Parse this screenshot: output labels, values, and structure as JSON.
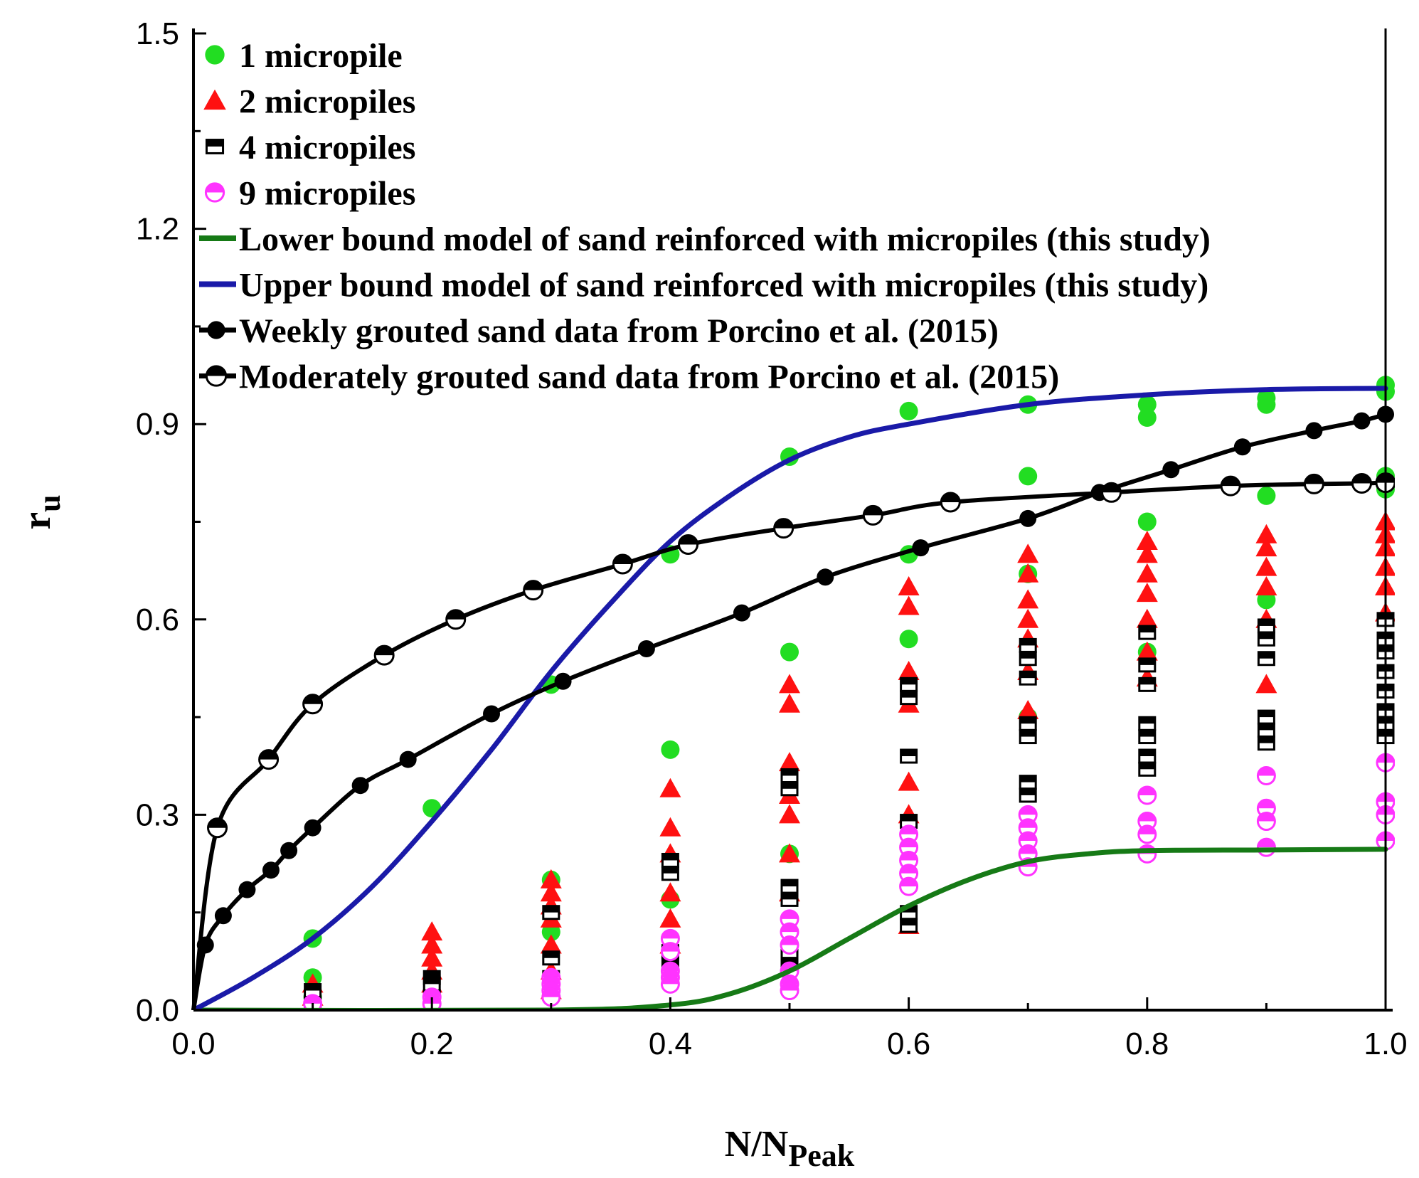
{
  "chart_data": {
    "type": "scatter",
    "title": "",
    "xlabel": {
      "main": "N/N",
      "sub": "Peak"
    },
    "ylabel": {
      "main": "r",
      "sub": "u"
    },
    "xlim": [
      0,
      1
    ],
    "ylim": [
      0,
      1.5
    ],
    "xticks": [
      "0.0",
      "0.2",
      "0.4",
      "0.6",
      "0.8",
      "1.0"
    ],
    "yticks": [
      "0.0",
      "0.3",
      "0.6",
      "0.9",
      "1.2",
      "1.5"
    ],
    "grid": false,
    "legend_position": "top-left",
    "colors": {
      "green_points": "#22dd22",
      "red_points": "#ff1111",
      "magenta_points": "#ff33ff",
      "lower_bound": "#167a16",
      "upper_bound": "#1a1aa8",
      "black": "#000000"
    },
    "series": [
      {
        "name": "1 micropile",
        "kind": "scatter",
        "marker": "circle",
        "points": [
          [
            0.1,
            0.11
          ],
          [
            0.1,
            0.05
          ],
          [
            0.1,
            0.02
          ],
          [
            0.2,
            0.31
          ],
          [
            0.2,
            0.01
          ],
          [
            0.3,
            0.5
          ],
          [
            0.3,
            0.2
          ],
          [
            0.3,
            0.12
          ],
          [
            0.4,
            0.7
          ],
          [
            0.4,
            0.4
          ],
          [
            0.4,
            0.17
          ],
          [
            0.5,
            0.85
          ],
          [
            0.5,
            0.55
          ],
          [
            0.5,
            0.24
          ],
          [
            0.6,
            0.92
          ],
          [
            0.6,
            0.7
          ],
          [
            0.6,
            0.57
          ],
          [
            0.7,
            0.93
          ],
          [
            0.7,
            0.82
          ],
          [
            0.7,
            0.67
          ],
          [
            0.7,
            0.45
          ],
          [
            0.8,
            0.93
          ],
          [
            0.8,
            0.91
          ],
          [
            0.8,
            0.75
          ],
          [
            0.8,
            0.55
          ],
          [
            0.9,
            0.94
          ],
          [
            0.9,
            0.93
          ],
          [
            0.9,
            0.79
          ],
          [
            0.9,
            0.63
          ],
          [
            1.0,
            0.96
          ],
          [
            1.0,
            0.95
          ],
          [
            1.0,
            0.82
          ],
          [
            1.0,
            0.8
          ]
        ]
      },
      {
        "name": "2 micropiles",
        "kind": "scatter",
        "marker": "triangle",
        "points": [
          [
            0.1,
            0.04
          ],
          [
            0.1,
            0.02
          ],
          [
            0.2,
            0.12
          ],
          [
            0.2,
            0.1
          ],
          [
            0.2,
            0.08
          ],
          [
            0.2,
            0.06
          ],
          [
            0.2,
            0.04
          ],
          [
            0.3,
            0.2
          ],
          [
            0.3,
            0.18
          ],
          [
            0.3,
            0.16
          ],
          [
            0.3,
            0.14
          ],
          [
            0.3,
            0.1
          ],
          [
            0.3,
            0.06
          ],
          [
            0.3,
            0.03
          ],
          [
            0.4,
            0.34
          ],
          [
            0.4,
            0.28
          ],
          [
            0.4,
            0.24
          ],
          [
            0.4,
            0.18
          ],
          [
            0.4,
            0.14
          ],
          [
            0.4,
            0.1
          ],
          [
            0.5,
            0.5
          ],
          [
            0.5,
            0.47
          ],
          [
            0.5,
            0.38
          ],
          [
            0.5,
            0.33
          ],
          [
            0.5,
            0.3
          ],
          [
            0.5,
            0.24
          ],
          [
            0.5,
            0.18
          ],
          [
            0.6,
            0.65
          ],
          [
            0.6,
            0.62
          ],
          [
            0.6,
            0.52
          ],
          [
            0.6,
            0.47
          ],
          [
            0.6,
            0.35
          ],
          [
            0.6,
            0.3
          ],
          [
            0.6,
            0.13
          ],
          [
            0.7,
            0.7
          ],
          [
            0.7,
            0.67
          ],
          [
            0.7,
            0.63
          ],
          [
            0.7,
            0.6
          ],
          [
            0.7,
            0.57
          ],
          [
            0.7,
            0.52
          ],
          [
            0.7,
            0.46
          ],
          [
            0.8,
            0.72
          ],
          [
            0.8,
            0.7
          ],
          [
            0.8,
            0.67
          ],
          [
            0.8,
            0.64
          ],
          [
            0.8,
            0.6
          ],
          [
            0.8,
            0.55
          ],
          [
            0.8,
            0.51
          ],
          [
            0.9,
            0.73
          ],
          [
            0.9,
            0.71
          ],
          [
            0.9,
            0.68
          ],
          [
            0.9,
            0.65
          ],
          [
            0.9,
            0.6
          ],
          [
            0.9,
            0.5
          ],
          [
            1.0,
            0.75
          ],
          [
            1.0,
            0.73
          ],
          [
            1.0,
            0.71
          ],
          [
            1.0,
            0.68
          ],
          [
            1.0,
            0.65
          ],
          [
            1.0,
            0.61
          ]
        ]
      },
      {
        "name": "4 micropiles",
        "kind": "scatter",
        "marker": "square-half",
        "points": [
          [
            0.1,
            0.03
          ],
          [
            0.1,
            0.01
          ],
          [
            0.2,
            0.05
          ],
          [
            0.2,
            0.04
          ],
          [
            0.2,
            0.02
          ],
          [
            0.3,
            0.15
          ],
          [
            0.3,
            0.08
          ],
          [
            0.3,
            0.05
          ],
          [
            0.3,
            0.03
          ],
          [
            0.4,
            0.23
          ],
          [
            0.4,
            0.21
          ],
          [
            0.4,
            0.09
          ],
          [
            0.4,
            0.07
          ],
          [
            0.5,
            0.36
          ],
          [
            0.5,
            0.34
          ],
          [
            0.5,
            0.19
          ],
          [
            0.5,
            0.17
          ],
          [
            0.5,
            0.09
          ],
          [
            0.5,
            0.07
          ],
          [
            0.6,
            0.5
          ],
          [
            0.6,
            0.48
          ],
          [
            0.6,
            0.39
          ],
          [
            0.6,
            0.29
          ],
          [
            0.6,
            0.15
          ],
          [
            0.6,
            0.13
          ],
          [
            0.7,
            0.56
          ],
          [
            0.7,
            0.54
          ],
          [
            0.7,
            0.51
          ],
          [
            0.7,
            0.44
          ],
          [
            0.7,
            0.42
          ],
          [
            0.7,
            0.35
          ],
          [
            0.7,
            0.33
          ],
          [
            0.8,
            0.58
          ],
          [
            0.8,
            0.53
          ],
          [
            0.8,
            0.5
          ],
          [
            0.8,
            0.44
          ],
          [
            0.8,
            0.42
          ],
          [
            0.8,
            0.39
          ],
          [
            0.8,
            0.37
          ],
          [
            0.9,
            0.59
          ],
          [
            0.9,
            0.57
          ],
          [
            0.9,
            0.54
          ],
          [
            0.9,
            0.45
          ],
          [
            0.9,
            0.43
          ],
          [
            0.9,
            0.41
          ],
          [
            1.0,
            0.6
          ],
          [
            1.0,
            0.57
          ],
          [
            1.0,
            0.55
          ],
          [
            1.0,
            0.52
          ],
          [
            1.0,
            0.49
          ],
          [
            1.0,
            0.46
          ],
          [
            1.0,
            0.44
          ],
          [
            1.0,
            0.42
          ]
        ]
      },
      {
        "name": "9 micropiles",
        "kind": "scatter",
        "marker": "circle-half",
        "points": [
          [
            0.1,
            0.01
          ],
          [
            0.2,
            0.02
          ],
          [
            0.2,
            0.01
          ],
          [
            0.3,
            0.05
          ],
          [
            0.3,
            0.04
          ],
          [
            0.3,
            0.03
          ],
          [
            0.3,
            0.02
          ],
          [
            0.4,
            0.11
          ],
          [
            0.4,
            0.09
          ],
          [
            0.4,
            0.06
          ],
          [
            0.4,
            0.05
          ],
          [
            0.4,
            0.04
          ],
          [
            0.5,
            0.14
          ],
          [
            0.5,
            0.12
          ],
          [
            0.5,
            0.1
          ],
          [
            0.5,
            0.06
          ],
          [
            0.5,
            0.04
          ],
          [
            0.5,
            0.03
          ],
          [
            0.6,
            0.27
          ],
          [
            0.6,
            0.25
          ],
          [
            0.6,
            0.23
          ],
          [
            0.6,
            0.21
          ],
          [
            0.6,
            0.19
          ],
          [
            0.7,
            0.3
          ],
          [
            0.7,
            0.28
          ],
          [
            0.7,
            0.26
          ],
          [
            0.7,
            0.24
          ],
          [
            0.7,
            0.22
          ],
          [
            0.8,
            0.33
          ],
          [
            0.8,
            0.29
          ],
          [
            0.8,
            0.27
          ],
          [
            0.8,
            0.24
          ],
          [
            0.9,
            0.36
          ],
          [
            0.9,
            0.31
          ],
          [
            0.9,
            0.29
          ],
          [
            0.9,
            0.25
          ],
          [
            1.0,
            0.38
          ],
          [
            1.0,
            0.32
          ],
          [
            1.0,
            0.3
          ],
          [
            1.0,
            0.26
          ]
        ]
      },
      {
        "name": "Lower bound model of sand reinforced with micropiles (this study)",
        "kind": "line",
        "color_key": "lower_bound",
        "points": [
          [
            0,
            0
          ],
          [
            0.3,
            0.0
          ],
          [
            0.4,
            0.008
          ],
          [
            0.45,
            0.025
          ],
          [
            0.5,
            0.06
          ],
          [
            0.55,
            0.11
          ],
          [
            0.6,
            0.16
          ],
          [
            0.65,
            0.2
          ],
          [
            0.7,
            0.228
          ],
          [
            0.75,
            0.24
          ],
          [
            0.8,
            0.245
          ],
          [
            0.9,
            0.246
          ],
          [
            1.0,
            0.247
          ]
        ]
      },
      {
        "name": "Upper bound model of sand reinforced with micropiles (this study)",
        "kind": "line",
        "color_key": "upper_bound",
        "points": [
          [
            0,
            0
          ],
          [
            0.05,
            0.05
          ],
          [
            0.1,
            0.11
          ],
          [
            0.15,
            0.19
          ],
          [
            0.2,
            0.29
          ],
          [
            0.25,
            0.4
          ],
          [
            0.3,
            0.52
          ],
          [
            0.35,
            0.625
          ],
          [
            0.4,
            0.72
          ],
          [
            0.45,
            0.79
          ],
          [
            0.5,
            0.845
          ],
          [
            0.55,
            0.88
          ],
          [
            0.6,
            0.9
          ],
          [
            0.7,
            0.93
          ],
          [
            0.8,
            0.945
          ],
          [
            0.9,
            0.953
          ],
          [
            1.0,
            0.955
          ]
        ]
      },
      {
        "name": "Weekly grouted sand data from Porcino et al. (2015)",
        "kind": "line-markers",
        "marker": "filled-circle",
        "points": [
          [
            0,
            0
          ],
          [
            0.01,
            0.1
          ],
          [
            0.025,
            0.145
          ],
          [
            0.045,
            0.185
          ],
          [
            0.065,
            0.215
          ],
          [
            0.08,
            0.245
          ],
          [
            0.1,
            0.28
          ],
          [
            0.14,
            0.345
          ],
          [
            0.18,
            0.385
          ],
          [
            0.25,
            0.455
          ],
          [
            0.31,
            0.505
          ],
          [
            0.38,
            0.555
          ],
          [
            0.46,
            0.61
          ],
          [
            0.53,
            0.665
          ],
          [
            0.61,
            0.71
          ],
          [
            0.7,
            0.755
          ],
          [
            0.76,
            0.795
          ],
          [
            0.82,
            0.83
          ],
          [
            0.88,
            0.865
          ],
          [
            0.94,
            0.89
          ],
          [
            0.98,
            0.905
          ],
          [
            1.0,
            0.915
          ]
        ]
      },
      {
        "name": "Moderately grouted sand data from Porcino et al. (2015)",
        "kind": "line-markers",
        "marker": "half-circle",
        "points": [
          [
            0,
            0
          ],
          [
            0.02,
            0.28
          ],
          [
            0.063,
            0.385
          ],
          [
            0.1,
            0.47
          ],
          [
            0.16,
            0.545
          ],
          [
            0.22,
            0.6
          ],
          [
            0.285,
            0.645
          ],
          [
            0.36,
            0.685
          ],
          [
            0.415,
            0.715
          ],
          [
            0.495,
            0.74
          ],
          [
            0.57,
            0.76
          ],
          [
            0.635,
            0.78
          ],
          [
            0.77,
            0.795
          ],
          [
            0.87,
            0.805
          ],
          [
            0.94,
            0.808
          ],
          [
            0.98,
            0.809
          ],
          [
            1.0,
            0.81
          ]
        ]
      }
    ]
  }
}
